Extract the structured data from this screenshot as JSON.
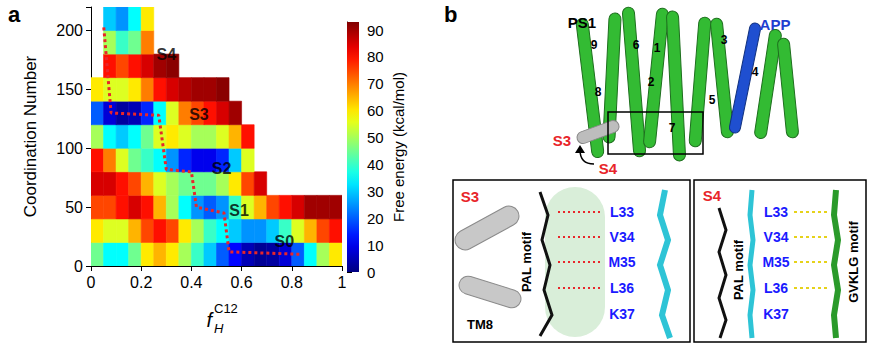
{
  "chart_data": {
    "type": "heatmap",
    "panel_label": "a",
    "x_label": {
      "base": "f",
      "sub": "H",
      "sup": "C12"
    },
    "y_label": "Coordination Number",
    "xlim": [
      0,
      1
    ],
    "xticks": [
      0,
      0.2,
      0.4,
      0.6,
      0.8,
      1
    ],
    "ylim": [
      0,
      220
    ],
    "yticks": [
      0,
      50,
      100,
      150,
      200
    ],
    "x_bins": [
      0,
      0.05,
      0.1,
      0.15,
      0.2,
      0.25,
      0.3,
      0.35,
      0.4,
      0.45,
      0.5,
      0.55,
      0.6,
      0.65,
      0.7,
      0.75,
      0.8,
      0.85,
      0.9,
      0.95,
      1
    ],
    "y_bins": [
      0,
      20,
      40,
      60,
      80,
      100,
      120,
      140,
      160,
      180,
      200,
      220
    ],
    "cells": [
      [
        45,
        35,
        35,
        45,
        60,
        65,
        60,
        50,
        40,
        30,
        20,
        12,
        5,
        2,
        3,
        8,
        20,
        35,
        50,
        60
      ],
      [
        60,
        55,
        55,
        65,
        75,
        80,
        75,
        60,
        50,
        40,
        35,
        30,
        25,
        25,
        30,
        40,
        55,
        65,
        75,
        80
      ],
      [
        75,
        75,
        80,
        85,
        80,
        65,
        50,
        35,
        25,
        20,
        25,
        40,
        55,
        65,
        75,
        80,
        85,
        90,
        90,
        90
      ],
      [
        85,
        85,
        80,
        75,
        65,
        55,
        50,
        45,
        45,
        45,
        50,
        60,
        75,
        85,
        null,
        null,
        null,
        null,
        null,
        null
      ],
      [
        80,
        70,
        55,
        45,
        40,
        35,
        25,
        15,
        10,
        10,
        15,
        30,
        55,
        null,
        null,
        null,
        null,
        null,
        null,
        null
      ],
      [
        50,
        35,
        30,
        35,
        45,
        55,
        60,
        55,
        50,
        50,
        55,
        65,
        80,
        null,
        null,
        null,
        null,
        null,
        null,
        null
      ],
      [
        20,
        8,
        3,
        5,
        15,
        35,
        55,
        70,
        75,
        80,
        85,
        90,
        null,
        null,
        null,
        null,
        null,
        null,
        null,
        null
      ],
      [
        60,
        55,
        55,
        60,
        70,
        80,
        85,
        88,
        90,
        90,
        92,
        null,
        null,
        null,
        null,
        null,
        null,
        null,
        null,
        null
      ],
      [
        null,
        80,
        75,
        80,
        85,
        90,
        92,
        null,
        null,
        null,
        null,
        null,
        null,
        null,
        null,
        null,
        null,
        null,
        null,
        null
      ],
      [
        null,
        50,
        40,
        45,
        70,
        null,
        null,
        null,
        null,
        null,
        null,
        null,
        null,
        null,
        null,
        null,
        null,
        null,
        null,
        null
      ],
      [
        null,
        30,
        25,
        35,
        60,
        null,
        null,
        null,
        null,
        null,
        null,
        null,
        null,
        null,
        null,
        null,
        null,
        null,
        null,
        null
      ]
    ],
    "colorbar": {
      "label": "Free energy (kcal/mol)",
      "range": [
        0,
        93
      ],
      "ticks": [
        0,
        10,
        20,
        30,
        40,
        50,
        60,
        70,
        80,
        90
      ]
    },
    "path": {
      "x": [
        0.83,
        0.55,
        0.53,
        0.42,
        0.4,
        0.3,
        0.27,
        0.08,
        0.05
      ],
      "y": [
        10,
        12,
        45,
        50,
        80,
        82,
        128,
        130,
        205
      ],
      "color": "#e8262a",
      "line_style": "dotted"
    },
    "annotations": [
      {
        "text": "S0",
        "x": 0.77,
        "y": 21
      },
      {
        "text": "S1",
        "x": 0.59,
        "y": 47
      },
      {
        "text": "S2",
        "x": 0.52,
        "y": 83
      },
      {
        "text": "S3",
        "x": 0.43,
        "y": 129
      },
      {
        "text": "S4",
        "x": 0.3,
        "y": 180
      }
    ]
  },
  "panel_b": {
    "panel_label": "b",
    "overview": {
      "protein": "PS1",
      "substrate": "APP",
      "helices": [
        "9",
        "6",
        "1",
        "3",
        "8",
        "2",
        "4",
        "5",
        "7"
      ],
      "states": [
        "S3",
        "S4"
      ]
    },
    "inset_s3": {
      "state": "S3",
      "helix": "TM8",
      "motif": "PAL motif",
      "residues": [
        "L33",
        "V34",
        "M35",
        "L36",
        "K37"
      ]
    },
    "inset_s4": {
      "state": "S4",
      "motifs": [
        "PAL motif",
        "GVKLG motif"
      ],
      "residues": [
        "L33",
        "V34",
        "M35",
        "L36",
        "K37"
      ]
    }
  }
}
